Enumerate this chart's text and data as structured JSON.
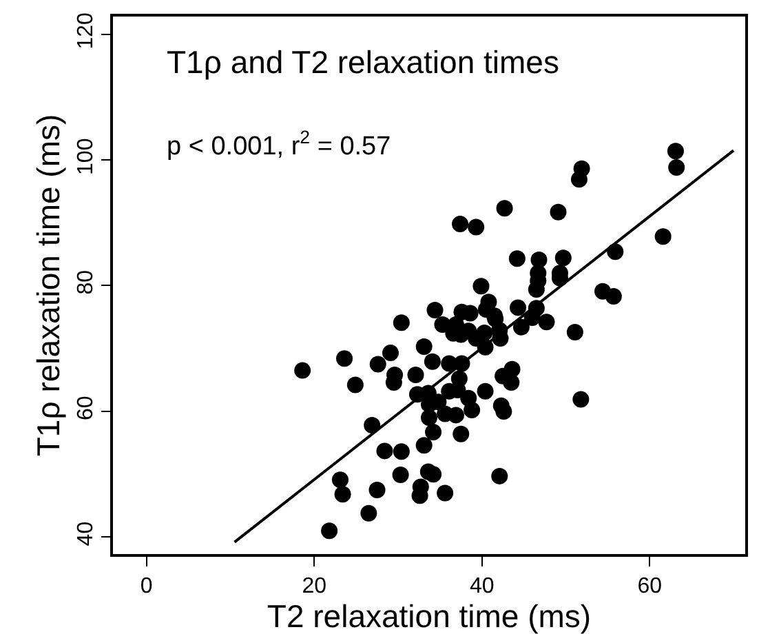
{
  "chart_data": {
    "type": "scatter",
    "title": "T1ρ and T2 relaxation times",
    "annotations": [
      "p < 0.001, r$^{2}$ = 0.57"
    ],
    "xlabel": "T2 relaxation time (ms)",
    "ylabel": "T1ρ relaxation time (ms)",
    "xlim": [
      -4,
      71.4
    ],
    "ylim": [
      37.3,
      122.8
    ],
    "xticks": [
      0,
      20,
      40,
      60
    ],
    "yticks": [
      40,
      60,
      80,
      100,
      120
    ],
    "marker": "circle",
    "series": [
      {
        "color": "#000000",
        "x": [
          18.6,
          23.6,
          24.9,
          27.6,
          29.1,
          29.6,
          29.5,
          30.4,
          26.9,
          28.4,
          30.4,
          30.3,
          23.1,
          23.4,
          27.5,
          26.5,
          21.8,
          32.1,
          33.1,
          32.3,
          33.6,
          34.1,
          34.4,
          35.3,
          33.7,
          34.8,
          33.7,
          34.2,
          33.1,
          33.6,
          34.2,
          32.7,
          32.6,
          35.6,
          35.6,
          36.9,
          36.1,
          37.1,
          37.3,
          36.1,
          37.6,
          37.5,
          38.4,
          38.8,
          36.9,
          36.6,
          37.5,
          37.6,
          38.6,
          38.4,
          39.3,
          40.3,
          40.4,
          40.4,
          37.4,
          39.3,
          39.9,
          40.8,
          40.5,
          41.5,
          41.6,
          42.1,
          42.2,
          42.7,
          42.3,
          42.6,
          42.1,
          42.5,
          43.6,
          43.5,
          44.2,
          44.3,
          44.7,
          46.0,
          46.5,
          46.8,
          46.7,
          46.7,
          46.5,
          47.7,
          49.1,
          49.3,
          49.3,
          49.7,
          51.1,
          51.6,
          51.9,
          51.8,
          54.4,
          55.7,
          55.9,
          61.6,
          63.1,
          63.2
        ],
        "values": [
          66.5,
          68.4,
          64.2,
          67.5,
          69.3,
          65.8,
          64.6,
          74.1,
          57.8,
          53.7,
          53.6,
          49.9,
          49.1,
          46.8,
          47.5,
          43.8,
          41.0,
          65.8,
          70.3,
          62.7,
          62.9,
          67.9,
          76.1,
          73.8,
          61.1,
          61.5,
          59.0,
          56.7,
          54.6,
          50.4,
          50.0,
          48.0,
          46.6,
          47.0,
          59.6,
          59.4,
          63.2,
          63.4,
          65.2,
          67.6,
          67.6,
          56.4,
          62.1,
          60.2,
          73.8,
          72.4,
          72.2,
          75.8,
          75.6,
          72.8,
          71.6,
          72.5,
          70.2,
          63.2,
          89.8,
          89.3,
          79.9,
          77.4,
          76.2,
          75.2,
          74.7,
          72.9,
          71.6,
          92.3,
          60.9,
          60.0,
          49.7,
          65.6,
          66.7,
          64.6,
          84.3,
          76.5,
          73.4,
          74.9,
          76.4,
          84.1,
          82.0,
          80.8,
          79.4,
          74.2,
          91.7,
          82.0,
          81.2,
          84.4,
          72.6,
          96.9,
          98.6,
          61.9,
          79.1,
          78.3,
          85.4,
          87.8,
          101.4,
          98.8
        ]
      },
      {
        "type": "line",
        "color": "#000000",
        "marker": "none",
        "line_style": "solid",
        "x": [
          10.5,
          70.0
        ],
        "values": [
          39.2,
          101.5
        ]
      }
    ]
  }
}
